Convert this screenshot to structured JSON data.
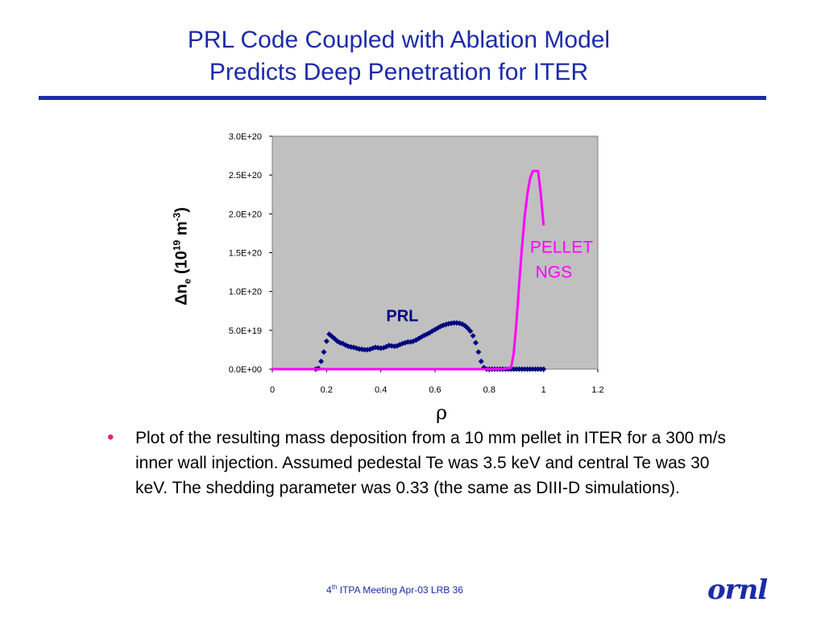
{
  "slide": {
    "title_line1": "PRL Code Coupled with Ablation Model",
    "title_line2": "Predicts Deep Penetration for ITER",
    "bullet_text": "Plot of the resulting mass deposition from a 10 mm pellet in ITER for a 300 m/s inner wall injection. Assumed pedestal Te was 3.5 keV and central Te was 30 keV.   The shedding parameter was 0.33  (the same as DIII-D simulations).",
    "footer_pre": "4",
    "footer_sup": "th",
    "footer_post": " ITPA Meeting  Apr-03   LRB     36",
    "logo_text": "ornl",
    "colors": {
      "title": "#1c2ba8",
      "bullet": "#e0207a"
    }
  },
  "chart_data": {
    "type": "scatter",
    "ylabel": {
      "main": "Δn",
      "sub": "e",
      "mid": " (10",
      "sup1": "19",
      "mid2": " m",
      "sup2": "-3",
      "end": ")"
    },
    "xlabel": "ρ",
    "xlim": [
      0,
      1.2
    ],
    "ylim": [
      0,
      3e+20
    ],
    "x_ticks": [
      "0",
      "0.2",
      "0.4",
      "0.6",
      "0.8",
      "1",
      "1.2"
    ],
    "y_ticks": [
      "0.0E+00",
      "5.0E+19",
      "1.0E+20",
      "1.5E+20",
      "2.0E+20",
      "2.5E+20",
      "3.0E+20"
    ],
    "grid": false,
    "plot_background": "#c0c0c0",
    "series": [
      {
        "name": "PRL",
        "color": "#000080",
        "marker": "diamond",
        "points": [
          [
            0.16,
            0.0
          ],
          [
            0.17,
            1e+18
          ],
          [
            0.18,
            1e+19
          ],
          [
            0.19,
            2.2e+19
          ],
          [
            0.2,
            3.6e+19
          ],
          [
            0.21,
            4.5e+19
          ],
          [
            0.22,
            4.2e+19
          ],
          [
            0.23,
            3.9e+19
          ],
          [
            0.24,
            3.6e+19
          ],
          [
            0.25,
            3.4e+19
          ],
          [
            0.26,
            3.3e+19
          ],
          [
            0.27,
            3.1e+19
          ],
          [
            0.28,
            2.95e+19
          ],
          [
            0.29,
            2.85e+19
          ],
          [
            0.3,
            2.8e+19
          ],
          [
            0.31,
            2.7e+19
          ],
          [
            0.32,
            2.6e+19
          ],
          [
            0.33,
            2.55e+19
          ],
          [
            0.34,
            2.5e+19
          ],
          [
            0.35,
            2.5e+19
          ],
          [
            0.36,
            2.55e+19
          ],
          [
            0.37,
            2.7e+19
          ],
          [
            0.38,
            2.8e+19
          ],
          [
            0.39,
            2.75e+19
          ],
          [
            0.4,
            2.7e+19
          ],
          [
            0.41,
            2.75e+19
          ],
          [
            0.42,
            2.9e+19
          ],
          [
            0.43,
            3.05e+19
          ],
          [
            0.44,
            3e+19
          ],
          [
            0.45,
            2.95e+19
          ],
          [
            0.46,
            3e+19
          ],
          [
            0.47,
            3.15e+19
          ],
          [
            0.48,
            3.3e+19
          ],
          [
            0.49,
            3.4e+19
          ],
          [
            0.5,
            3.5e+19
          ],
          [
            0.51,
            3.5e+19
          ],
          [
            0.52,
            3.6e+19
          ],
          [
            0.53,
            3.75e+19
          ],
          [
            0.54,
            3.95e+19
          ],
          [
            0.55,
            4.15e+19
          ],
          [
            0.56,
            4.35e+19
          ],
          [
            0.57,
            4.5e+19
          ],
          [
            0.58,
            4.7e+19
          ],
          [
            0.59,
            4.9e+19
          ],
          [
            0.6,
            5.1e+19
          ],
          [
            0.61,
            5.3e+19
          ],
          [
            0.62,
            5.5e+19
          ],
          [
            0.63,
            5.65e+19
          ],
          [
            0.64,
            5.75e+19
          ],
          [
            0.65,
            5.85e+19
          ],
          [
            0.66,
            5.9e+19
          ],
          [
            0.67,
            5.95e+19
          ],
          [
            0.68,
            5.95e+19
          ],
          [
            0.69,
            5.9e+19
          ],
          [
            0.7,
            5.8e+19
          ],
          [
            0.71,
            5.6e+19
          ],
          [
            0.72,
            5.3e+19
          ],
          [
            0.73,
            4.9e+19
          ],
          [
            0.74,
            4.3e+19
          ],
          [
            0.75,
            3.4e+19
          ],
          [
            0.76,
            2.2e+19
          ],
          [
            0.77,
            1e+19
          ],
          [
            0.78,
            2e+18
          ],
          [
            0.79,
            0.0
          ],
          [
            0.8,
            0.0
          ],
          [
            0.81,
            0.0
          ],
          [
            0.82,
            0.0
          ],
          [
            0.83,
            0.0
          ],
          [
            0.84,
            0.0
          ],
          [
            0.85,
            0.0
          ],
          [
            0.86,
            0.0
          ],
          [
            0.87,
            0.0
          ],
          [
            0.88,
            0.0
          ],
          [
            0.89,
            0.0
          ],
          [
            0.9,
            0.0
          ],
          [
            0.91,
            0.0
          ],
          [
            0.92,
            0.0
          ],
          [
            0.93,
            0.0
          ],
          [
            0.94,
            0.0
          ],
          [
            0.95,
            0.0
          ],
          [
            0.96,
            0.0
          ],
          [
            0.97,
            0.0
          ],
          [
            0.98,
            0.0
          ],
          [
            0.99,
            0.0
          ],
          [
            1.0,
            0.0
          ]
        ]
      },
      {
        "name": "PELLET NGS",
        "color": "#ff00ff",
        "marker": "line",
        "points": [
          [
            0.0,
            0.0
          ],
          [
            0.78,
            0.0
          ],
          [
            0.85,
            0.0
          ],
          [
            0.88,
            2e+18
          ],
          [
            0.89,
            2e+19
          ],
          [
            0.9,
            6e+19
          ],
          [
            0.91,
            1.1e+20
          ],
          [
            0.92,
            1.55e+20
          ],
          [
            0.93,
            1.95e+20
          ],
          [
            0.94,
            2.25e+20
          ],
          [
            0.95,
            2.45e+20
          ],
          [
            0.96,
            2.55e+20
          ],
          [
            0.98,
            2.55e+20
          ],
          [
            0.99,
            2.25e+20
          ],
          [
            1.0,
            1.85e+20
          ]
        ]
      }
    ],
    "annotations": [
      {
        "text": "PRL",
        "x": 0.42,
        "y": 6.2e+19,
        "color": "#000080",
        "bold": true
      },
      {
        "text": "PELLET",
        "x": 0.95,
        "y": 1.5e+20,
        "color": "#ff00ff",
        "bold": false
      },
      {
        "text": "NGS",
        "x": 0.97,
        "y": 1.18e+20,
        "color": "#ff00ff",
        "bold": false
      }
    ]
  }
}
